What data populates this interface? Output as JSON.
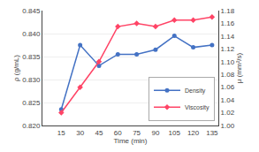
{
  "chart_data": {
    "type": "line",
    "x_label": "Time (min)",
    "y_label": "ρ (g/mL)",
    "y2_label": "μ (mm²/s)",
    "x": [
      15,
      30,
      45,
      60,
      75,
      90,
      105,
      120,
      135
    ],
    "series": [
      {
        "name": "Density",
        "color": "#4472C4",
        "marker": "circle",
        "axis": "y",
        "values": [
          0.8235,
          0.8375,
          0.833,
          0.8355,
          0.8355,
          0.8365,
          0.8395,
          0.837,
          0.8375
        ]
      },
      {
        "name": "Viscosity",
        "color": "#FF4466",
        "marker": "diamond",
        "axis": "y2",
        "values": [
          1.02,
          1.06,
          1.1,
          1.155,
          1.16,
          1.155,
          1.165,
          1.165,
          1.17
        ]
      }
    ],
    "xlim": [
      0,
      140
    ],
    "xticks": [
      15,
      30,
      45,
      60,
      75,
      90,
      105,
      120,
      135
    ],
    "ylim": [
      0.82,
      0.845
    ],
    "yticks": [
      {
        "value": 0.82,
        "label": "0.820"
      },
      0.825,
      {
        "value": 0.83,
        "label": "0.830"
      },
      0.835,
      {
        "value": 0.84,
        "label": "0.840"
      },
      0.845
    ],
    "y2lim": [
      1.0,
      1.18
    ],
    "y2ticks": [
      {
        "value": 1.0,
        "label": "1.00"
      },
      1.02,
      1.04,
      1.06,
      1.08,
      {
        "value": 1.1,
        "label": "1.10"
      },
      1.12,
      1.14,
      1.16,
      1.18
    ],
    "grid": true,
    "legend": "lower right"
  }
}
